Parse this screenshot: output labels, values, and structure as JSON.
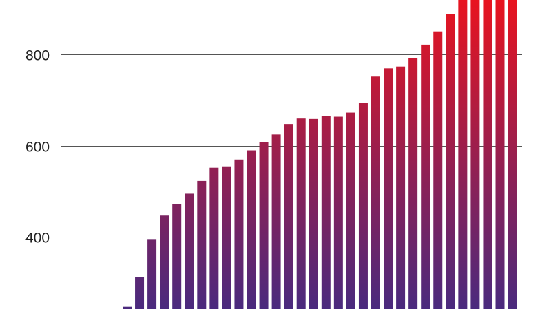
{
  "chart_data": {
    "type": "bar",
    "title": "",
    "xlabel": "",
    "ylabel": "",
    "ylim": [
      242,
      920
    ],
    "grid": true,
    "y_ticks": [
      400,
      600,
      800
    ],
    "y_tick_labels": [
      "400",
      "600",
      "800"
    ],
    "bar_color_gradient": [
      "#4a2a7e",
      "#e8141f"
    ],
    "gridline_color": "#555555",
    "values": [
      247,
      312,
      394,
      447,
      472,
      495,
      523,
      552,
      555,
      570,
      590,
      608,
      625,
      648,
      660,
      659,
      665,
      664,
      673,
      695,
      752,
      770,
      774,
      793,
      822,
      851,
      889,
      930,
      930,
      930,
      930,
      930
    ]
  }
}
